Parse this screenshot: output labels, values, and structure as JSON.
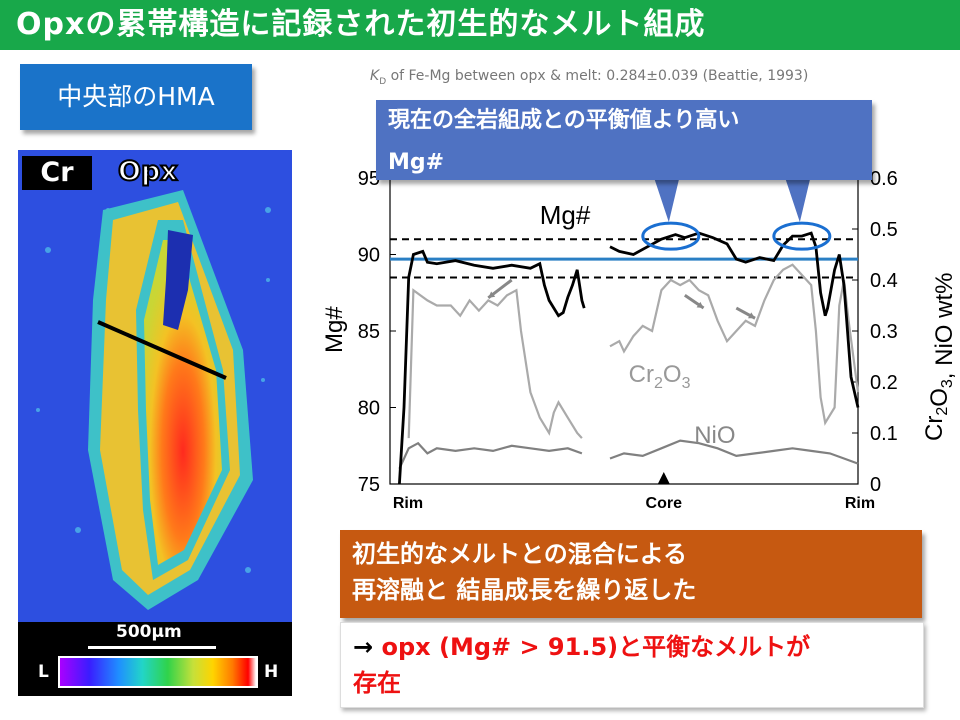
{
  "slide": {
    "title": "Opxの累帯構造に記録された初生的なメルト組成",
    "section_label": "中央部のHMA",
    "kd_note": "KD of Fe-Mg between opx & melt: 0.284±0.039 (Beattie, 1993)",
    "callout": [
      "現在の全岩組成との平衡値より高い",
      "Mg#"
    ],
    "conclusion": [
      "初生的なメルトとの混合による",
      "再溶融と 結晶成長を繰り返した"
    ],
    "result": [
      "→ opx (Mg# > 91.5)と平衡なメルトが",
      "存在"
    ]
  },
  "map": {
    "element_label": "Cr",
    "mineral_label": "Opx",
    "scale_label": "500μm",
    "low_label": "L",
    "high_label": "H"
  },
  "chart_data": {
    "type": "line",
    "ylabel_left": "Mg#",
    "ylabel_right": "Cr2O3, NiO wt%",
    "ylim_left": [
      75,
      95
    ],
    "ylim_right": [
      0,
      0.6
    ],
    "yticks_left": [
      "75",
      "80",
      "85",
      "90",
      "95"
    ],
    "yticks_right": [
      "0",
      "0.1",
      "0.2",
      "0.3",
      "0.4",
      "0.5",
      "0.6"
    ],
    "x_labels": [
      "Rim",
      "Core",
      "Rim"
    ],
    "series_labels": {
      "mg": "Mg#",
      "cr": "Cr2O3",
      "ni": "NiO"
    },
    "reference_lines": {
      "measured_mg": 89.7,
      "upper_dashed": 91.0,
      "lower_dashed": 88.5
    },
    "mg": [
      [
        0.02,
        75
      ],
      [
        0.03,
        80
      ],
      [
        0.04,
        88.5
      ],
      [
        0.05,
        90
      ],
      [
        0.07,
        90.2
      ],
      [
        0.08,
        89.5
      ],
      [
        0.1,
        89.4
      ],
      [
        0.14,
        89.6
      ],
      [
        0.18,
        89.3
      ],
      [
        0.22,
        89.1
      ],
      [
        0.26,
        89.3
      ],
      [
        0.3,
        89.1
      ],
      [
        0.32,
        89.4
      ],
      [
        0.33,
        88
      ],
      [
        0.34,
        87
      ],
      [
        0.36,
        86
      ],
      [
        0.37,
        86.2
      ],
      [
        0.38,
        87.2
      ],
      [
        0.39,
        88
      ],
      [
        0.4,
        89
      ],
      [
        0.41,
        87
      ],
      [
        0.415,
        86.5
      ],
      [
        0.44,
        null
      ],
      [
        0.47,
        90.5
      ],
      [
        0.49,
        90.2
      ],
      [
        0.52,
        90
      ],
      [
        0.55,
        90.5
      ],
      [
        0.58,
        91
      ],
      [
        0.61,
        91.3
      ],
      [
        0.63,
        91.1
      ],
      [
        0.66,
        91.4
      ],
      [
        0.69,
        91.1
      ],
      [
        0.72,
        90.7
      ],
      [
        0.74,
        89.7
      ],
      [
        0.76,
        89.5
      ],
      [
        0.79,
        89.8
      ],
      [
        0.82,
        89.6
      ],
      [
        0.84,
        90.6
      ],
      [
        0.86,
        91.2
      ],
      [
        0.88,
        91.2
      ],
      [
        0.9,
        91.4
      ],
      [
        0.91,
        90.5
      ],
      [
        0.92,
        87.5
      ],
      [
        0.93,
        86
      ],
      [
        0.935,
        86.5
      ],
      [
        0.95,
        89
      ],
      [
        0.96,
        90
      ],
      [
        0.97,
        88
      ],
      [
        0.985,
        82
      ],
      [
        1.0,
        80
      ]
    ],
    "cr": [
      [
        0.04,
        0.09
      ],
      [
        0.05,
        0.38
      ],
      [
        0.08,
        0.36
      ],
      [
        0.1,
        0.35
      ],
      [
        0.13,
        0.35
      ],
      [
        0.15,
        0.33
      ],
      [
        0.17,
        0.36
      ],
      [
        0.19,
        0.34
      ],
      [
        0.21,
        0.36
      ],
      [
        0.23,
        0.35
      ],
      [
        0.25,
        0.37
      ],
      [
        0.27,
        0.38
      ],
      [
        0.28,
        0.3
      ],
      [
        0.3,
        0.18
      ],
      [
        0.32,
        0.13
      ],
      [
        0.34,
        0.1
      ],
      [
        0.35,
        0.14
      ],
      [
        0.36,
        0.16
      ],
      [
        0.38,
        0.13
      ],
      [
        0.4,
        0.1
      ],
      [
        0.41,
        0.09
      ],
      [
        0.44,
        null
      ],
      [
        0.47,
        0.27
      ],
      [
        0.49,
        0.28
      ],
      [
        0.5,
        0.26
      ],
      [
        0.52,
        0.29
      ],
      [
        0.54,
        0.31
      ],
      [
        0.56,
        0.3
      ],
      [
        0.58,
        0.38
      ],
      [
        0.6,
        0.4
      ],
      [
        0.62,
        0.39
      ],
      [
        0.64,
        0.4
      ],
      [
        0.66,
        0.38
      ],
      [
        0.68,
        0.37
      ],
      [
        0.7,
        0.32
      ],
      [
        0.72,
        0.28
      ],
      [
        0.74,
        0.3
      ],
      [
        0.76,
        0.32
      ],
      [
        0.78,
        0.31
      ],
      [
        0.8,
        0.36
      ],
      [
        0.82,
        0.4
      ],
      [
        0.84,
        0.42
      ],
      [
        0.86,
        0.43
      ],
      [
        0.88,
        0.41
      ],
      [
        0.9,
        0.39
      ],
      [
        0.91,
        0.3
      ],
      [
        0.92,
        0.17
      ],
      [
        0.93,
        0.12
      ],
      [
        0.95,
        0.15
      ],
      [
        0.96,
        0.35
      ],
      [
        0.97,
        0.4
      ],
      [
        0.98,
        0.32
      ],
      [
        1.0,
        0.18
      ]
    ],
    "ni": [
      [
        0.02,
        0.03
      ],
      [
        0.04,
        0.07
      ],
      [
        0.06,
        0.08
      ],
      [
        0.08,
        0.06
      ],
      [
        0.1,
        0.07
      ],
      [
        0.14,
        0.065
      ],
      [
        0.18,
        0.07
      ],
      [
        0.22,
        0.065
      ],
      [
        0.26,
        0.075
      ],
      [
        0.3,
        0.07
      ],
      [
        0.34,
        0.065
      ],
      [
        0.38,
        0.07
      ],
      [
        0.41,
        0.06
      ],
      [
        0.44,
        null
      ],
      [
        0.47,
        0.05
      ],
      [
        0.5,
        0.06
      ],
      [
        0.54,
        0.055
      ],
      [
        0.58,
        0.07
      ],
      [
        0.62,
        0.085
      ],
      [
        0.66,
        0.08
      ],
      [
        0.7,
        0.07
      ],
      [
        0.74,
        0.055
      ],
      [
        0.78,
        0.06
      ],
      [
        0.82,
        0.065
      ],
      [
        0.86,
        0.07
      ],
      [
        0.9,
        0.065
      ],
      [
        0.94,
        0.06
      ],
      [
        0.97,
        0.05
      ],
      [
        1.0,
        0.04
      ]
    ],
    "highlights": [
      [
        0.6,
        91.2
      ],
      [
        0.88,
        91.2
      ]
    ]
  },
  "colors": {
    "title_bg": "#18a84a",
    "section_bg": "#1a73c9",
    "callout_bg": "#4f72c2",
    "conclusion_bg": "#c65911",
    "result_text": "#e11111",
    "mg_line": "#000000",
    "cr_line": "#aaaaaa",
    "ni_line": "#808080",
    "measured_line": "#2a7fc4",
    "highlight_ellipse": "#1a6fd1"
  }
}
